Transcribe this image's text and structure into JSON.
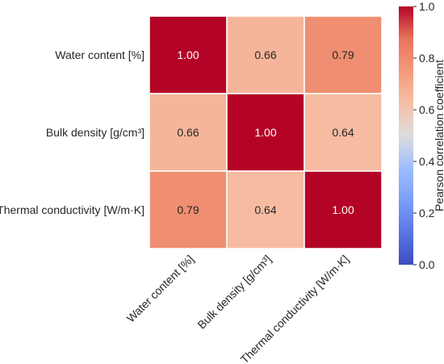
{
  "chart_data": {
    "type": "heatmap",
    "rows": [
      "Water content [%]",
      "Bulk density [g/cm³]",
      "Thermal conductivity [W/m·K]"
    ],
    "cols": [
      "Water content [%]",
      "Bulk density [g/cm³]",
      "Thermal conductivity [W/m·K]"
    ],
    "values": [
      [
        1.0,
        0.66,
        0.79
      ],
      [
        0.66,
        1.0,
        0.64
      ],
      [
        0.79,
        0.64,
        1.0
      ]
    ],
    "value_labels": [
      [
        "1.00",
        "0.66",
        "0.79"
      ],
      [
        "0.66",
        "1.00",
        "0.64"
      ],
      [
        "0.79",
        "0.64",
        "1.00"
      ]
    ],
    "colormap": "coolwarm",
    "vmin": 0.0,
    "vmax": 1.0,
    "colorbar": {
      "label": "Pearson correlation coefficient",
      "ticks": [
        0.0,
        0.2,
        0.4,
        0.6,
        0.8,
        1.0
      ],
      "tick_labels": [
        "0.0",
        "0.2",
        "0.4",
        "0.6",
        "0.8",
        "1.0"
      ]
    },
    "legend_placement": "right"
  }
}
